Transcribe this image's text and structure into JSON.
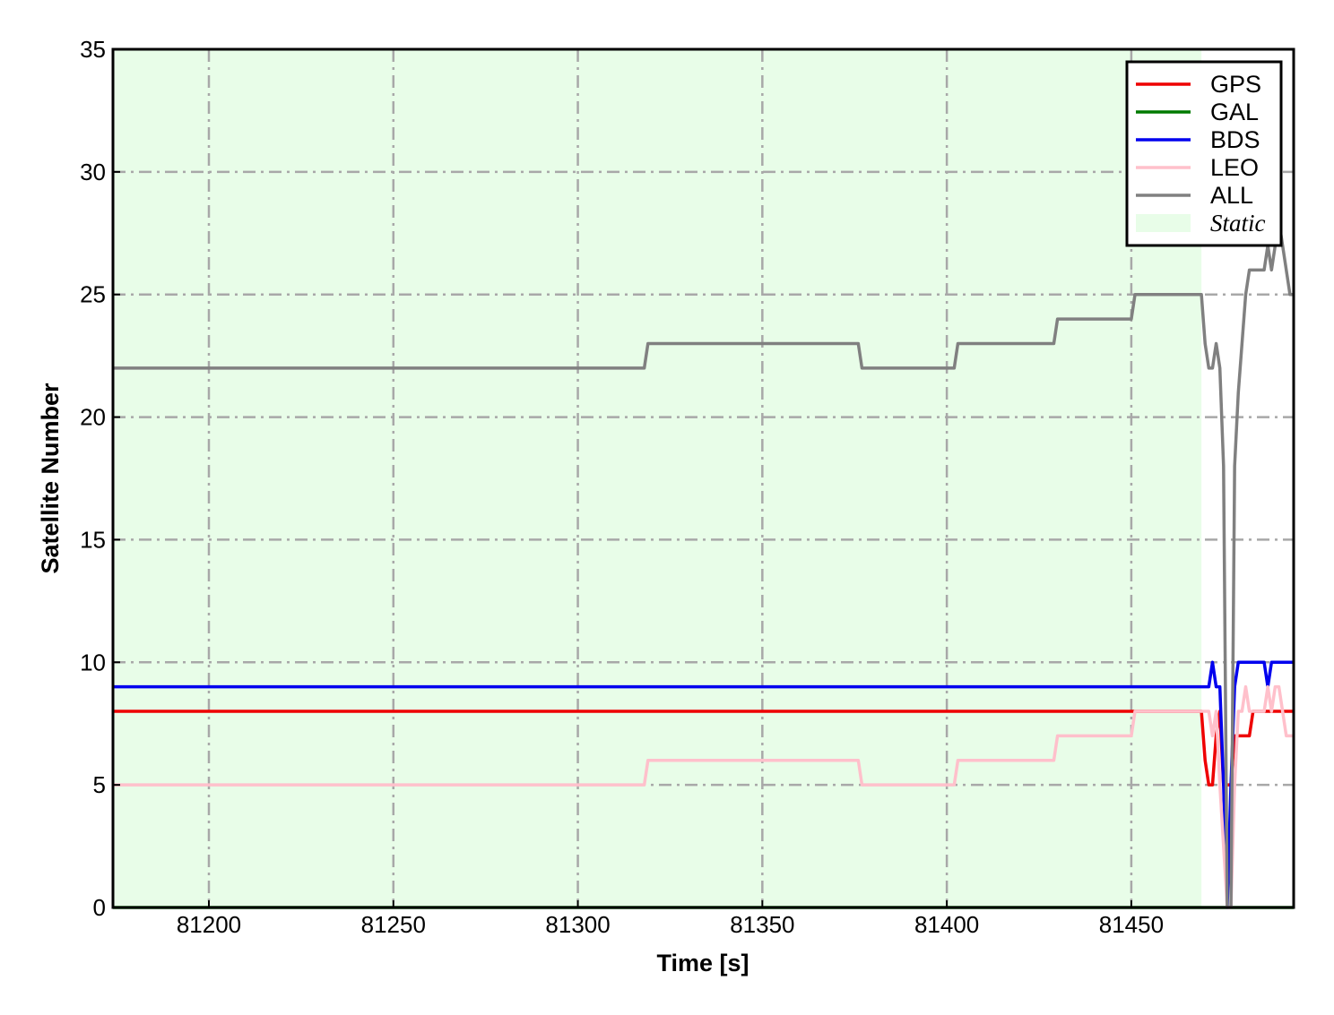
{
  "chart_data": {
    "type": "line",
    "title": "",
    "xlabel": "Time [s]",
    "ylabel": "Satellite Number",
    "xlim": [
      81174,
      81494
    ],
    "ylim": [
      0,
      35
    ],
    "xticks": [
      81200,
      81250,
      81300,
      81350,
      81400,
      81450
    ],
    "yticks": [
      0,
      5,
      10,
      15,
      20,
      25,
      30,
      35
    ],
    "grid": true,
    "legend_position": "top-right",
    "shaded_regions": [
      {
        "name": "Static",
        "x": [
          81174,
          81469
        ],
        "color": "#e8fde8"
      }
    ],
    "series": [
      {
        "name": "GPS",
        "color": "#ee0000",
        "points": [
          [
            81174,
            8
          ],
          [
            81469,
            8
          ],
          [
            81470,
            6
          ],
          [
            81471,
            5
          ],
          [
            81472,
            5
          ],
          [
            81473,
            7
          ],
          [
            81474,
            8
          ],
          [
            81475,
            5
          ],
          [
            81476,
            5
          ],
          [
            81477,
            5
          ],
          [
            81478,
            7
          ],
          [
            81482,
            7
          ],
          [
            81483,
            8
          ],
          [
            81494,
            8
          ]
        ]
      },
      {
        "name": "GAL",
        "color": "#007a00",
        "points": [
          [
            81174,
            0
          ],
          [
            81494,
            0
          ]
        ]
      },
      {
        "name": "BDS",
        "color": "#0000ee",
        "points": [
          [
            81174,
            9
          ],
          [
            81471,
            9
          ],
          [
            81472,
            10
          ],
          [
            81473,
            9
          ],
          [
            81474,
            9
          ],
          [
            81475,
            5
          ],
          [
            81476,
            0
          ],
          [
            81477,
            5
          ],
          [
            81478,
            9
          ],
          [
            81479,
            10
          ],
          [
            81486,
            10
          ],
          [
            81487,
            9
          ],
          [
            81488,
            10
          ],
          [
            81494,
            10
          ]
        ]
      },
      {
        "name": "LEO",
        "color": "#ffc0cb",
        "points": [
          [
            81174,
            5
          ],
          [
            81318,
            5
          ],
          [
            81319,
            6
          ],
          [
            81376,
            6
          ],
          [
            81377,
            5
          ],
          [
            81402,
            5
          ],
          [
            81403,
            6
          ],
          [
            81429,
            6
          ],
          [
            81430,
            7
          ],
          [
            81450,
            7
          ],
          [
            81451,
            8
          ],
          [
            81471,
            8
          ],
          [
            81472,
            7
          ],
          [
            81473,
            8
          ],
          [
            81474,
            5
          ],
          [
            81476,
            0
          ],
          [
            81477,
            0
          ],
          [
            81478,
            5
          ],
          [
            81479,
            8
          ],
          [
            81480,
            8
          ],
          [
            81481,
            9
          ],
          [
            81482,
            8
          ],
          [
            81486,
            8
          ],
          [
            81487,
            9
          ],
          [
            81488,
            8
          ],
          [
            81489,
            9
          ],
          [
            81490,
            9
          ],
          [
            81492,
            7
          ],
          [
            81494,
            7
          ]
        ]
      },
      {
        "name": "ALL",
        "color": "#808080",
        "points": [
          [
            81174,
            22
          ],
          [
            81318,
            22
          ],
          [
            81319,
            23
          ],
          [
            81376,
            23
          ],
          [
            81377,
            22
          ],
          [
            81402,
            22
          ],
          [
            81403,
            23
          ],
          [
            81429,
            23
          ],
          [
            81430,
            24
          ],
          [
            81450,
            24
          ],
          [
            81451,
            25
          ],
          [
            81469,
            25
          ],
          [
            81470,
            23
          ],
          [
            81471,
            22
          ],
          [
            81472,
            22
          ],
          [
            81473,
            23
          ],
          [
            81474,
            22
          ],
          [
            81475,
            18
          ],
          [
            81476,
            0
          ],
          [
            81477,
            0
          ],
          [
            81478,
            18
          ],
          [
            81479,
            21
          ],
          [
            81480,
            23
          ],
          [
            81481,
            25
          ],
          [
            81482,
            26
          ],
          [
            81486,
            26
          ],
          [
            81487,
            27
          ],
          [
            81488,
            26
          ],
          [
            81489,
            27
          ],
          [
            81490,
            28
          ],
          [
            81491,
            27
          ],
          [
            81493,
            25
          ],
          [
            81494,
            25
          ]
        ]
      }
    ],
    "legend": [
      "GPS",
      "GAL",
      "BDS",
      "LEO",
      "ALL",
      "Static"
    ]
  }
}
